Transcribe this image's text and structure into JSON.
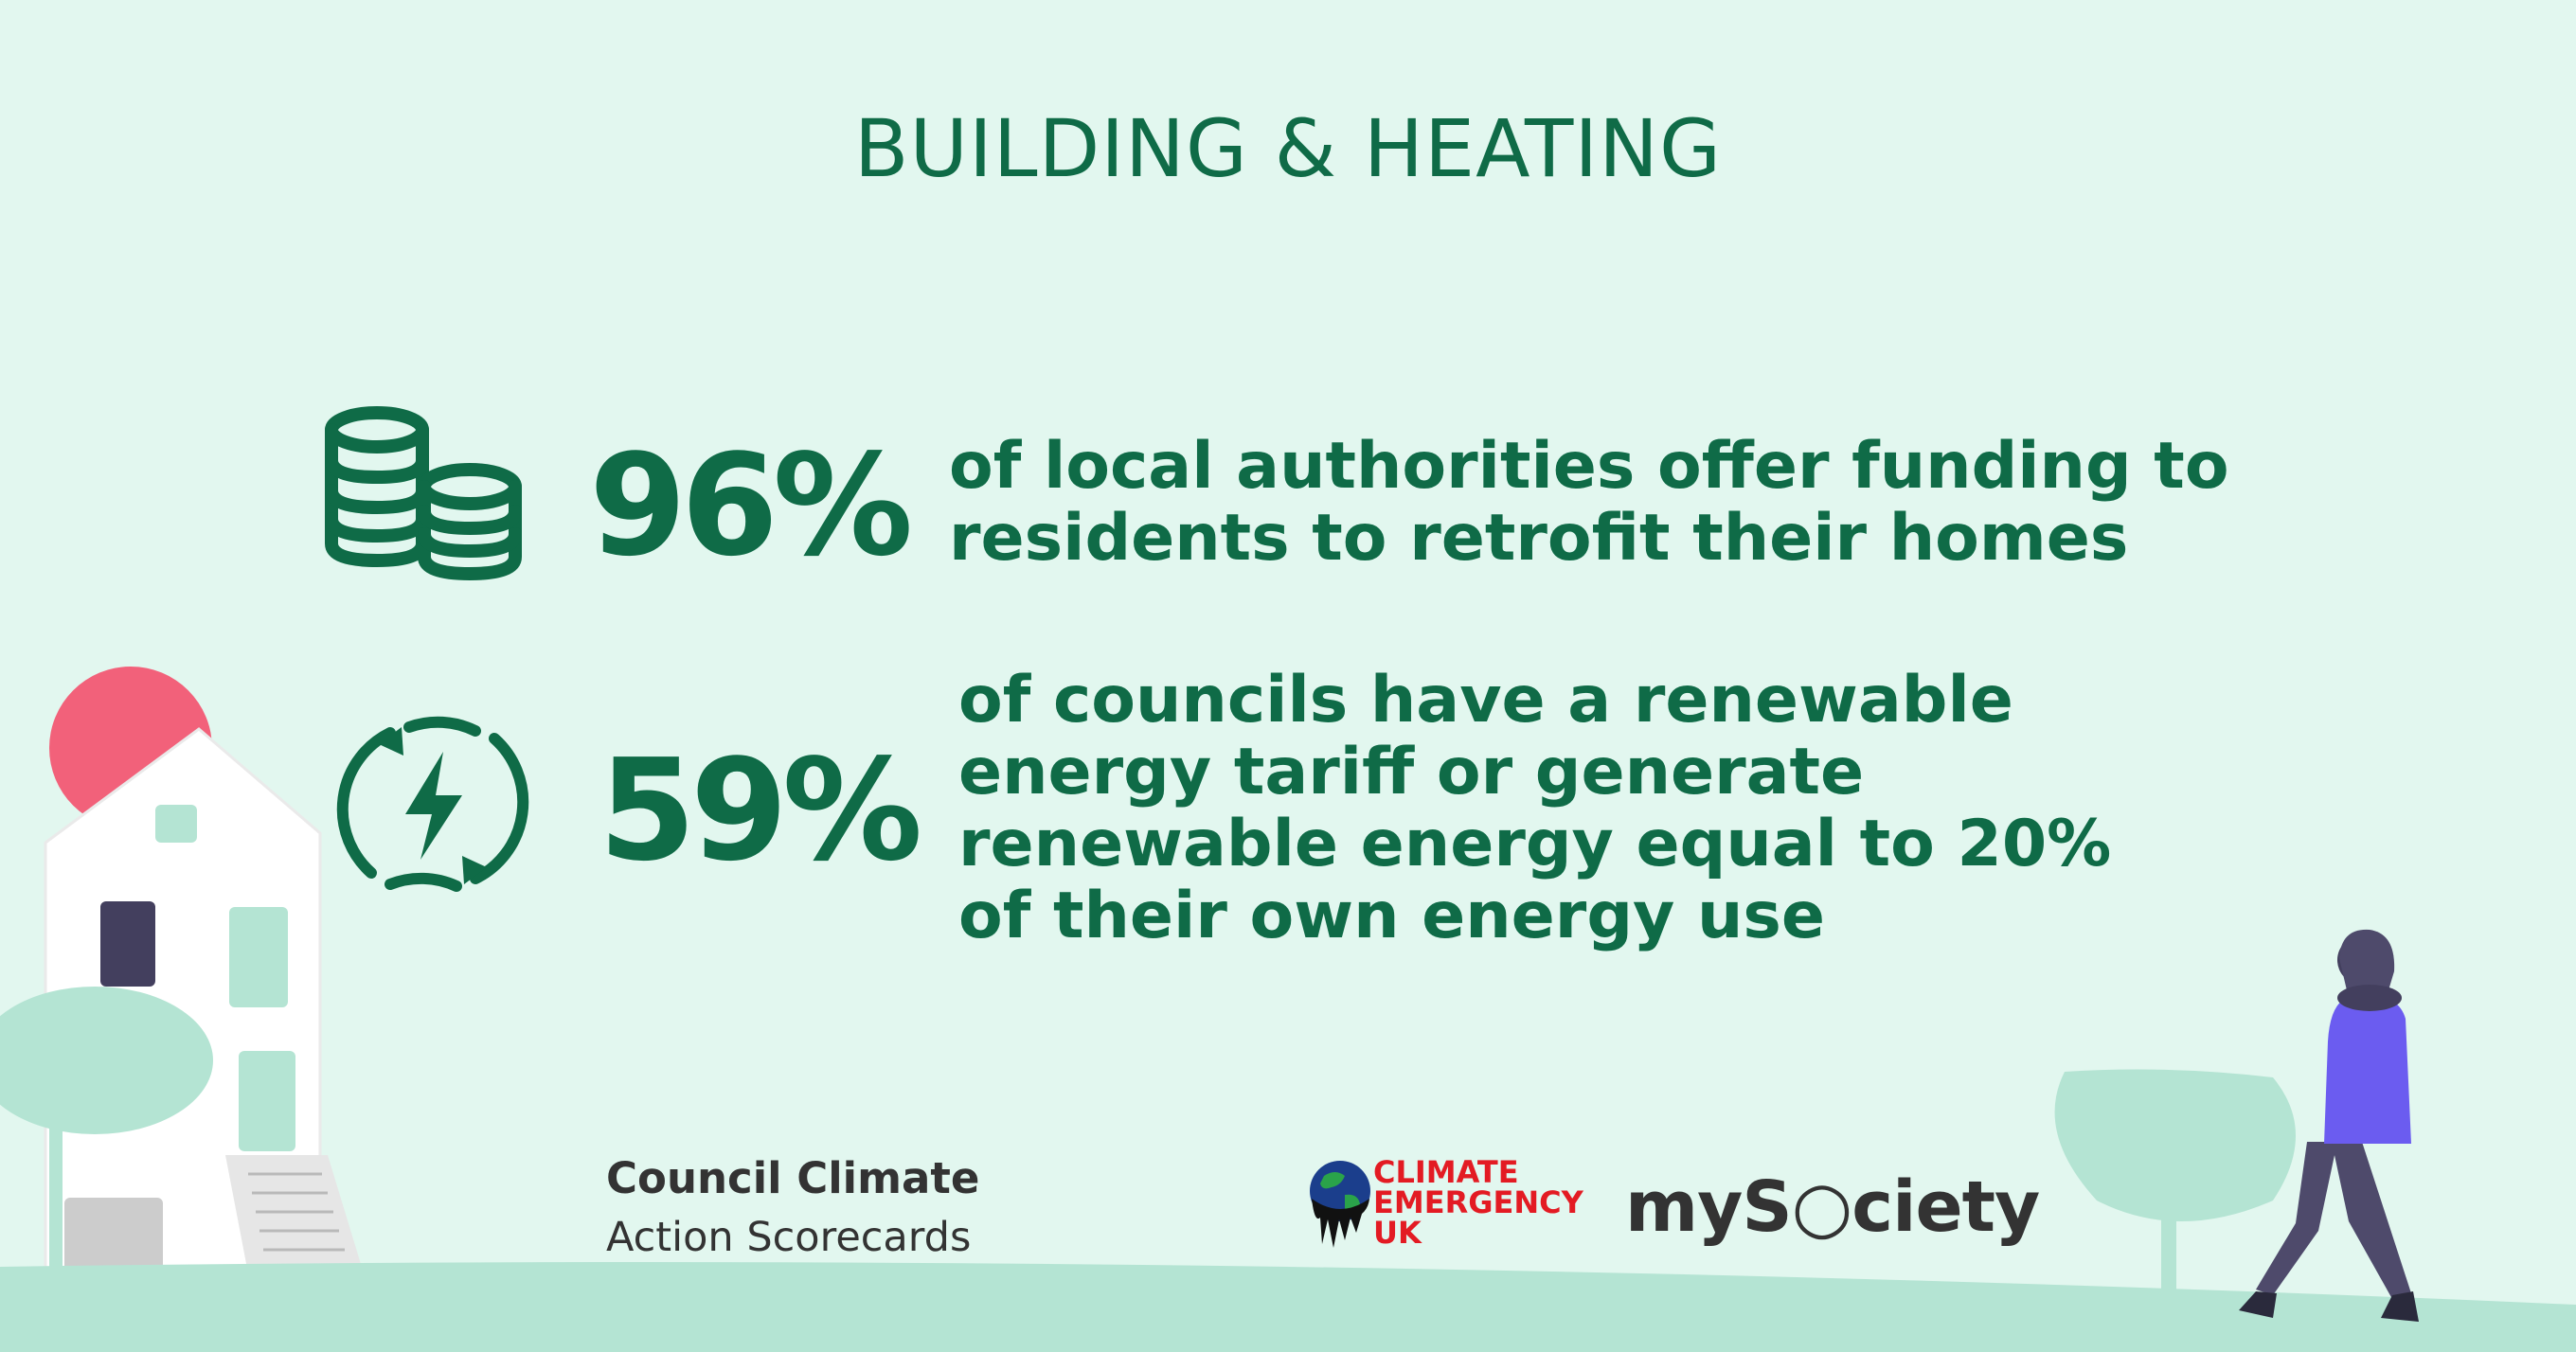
{
  "title": "BUILDING & HEATING",
  "stats": [
    {
      "value": "96%",
      "lines": [
        "of local authorities offer funding to",
        "residents to retrofit their homes"
      ],
      "icon": "coins-icon"
    },
    {
      "value": "59%",
      "lines": [
        "of councils have a renewable",
        "energy tariff or generate",
        "renewable energy equal to 20%",
        "of their own energy use"
      ],
      "icon": "renewable-energy-icon"
    }
  ],
  "branding": {
    "scorecards_line1": "Council Climate",
    "scorecards_line2": "Action Scorecards",
    "cee_line1": "CLIMATE",
    "cee_line2": "EMERGENCY",
    "cee_line3": "UK",
    "mysociety": "myS○ciety"
  },
  "colors": {
    "background": "#e2f7ef",
    "primary_green": "#0f6b47",
    "light_green": "#b4e4d3",
    "sun_pink": "#f2617a",
    "person_purple": "#6b5cf0",
    "cee_red": "#e31b23"
  }
}
